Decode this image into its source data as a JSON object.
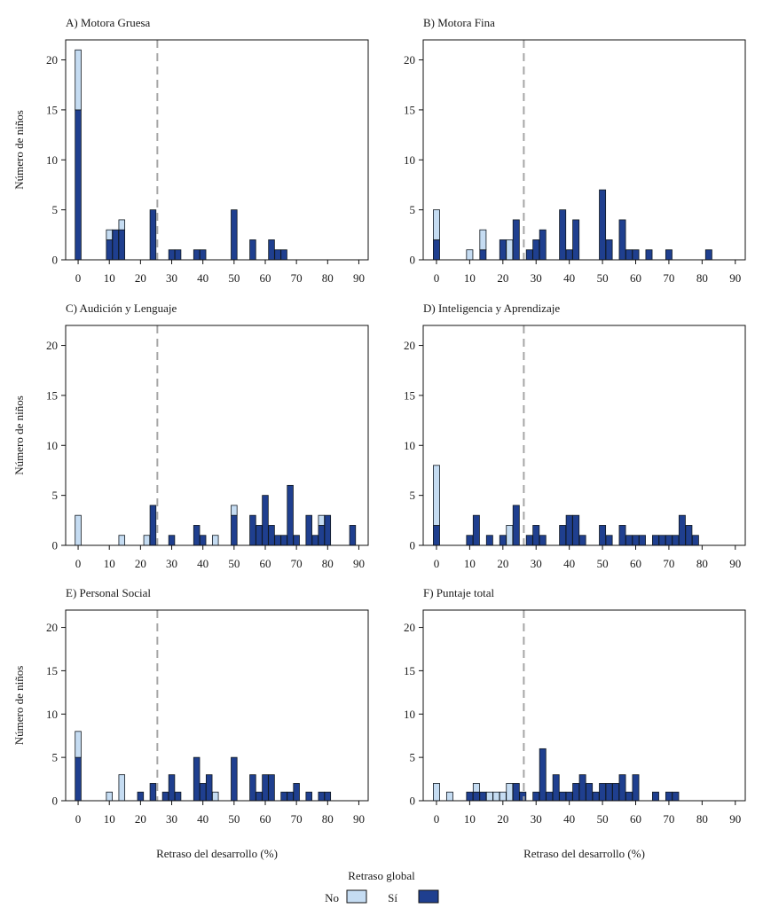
{
  "chart_data": [
    {
      "type": "bar",
      "stacked": true,
      "title": "A) Motora Gruesa",
      "ylabel": "Número de niños",
      "xlabel": "",
      "xlim": [
        -4,
        93
      ],
      "ylim": [
        0,
        22
      ],
      "xticks": [
        0,
        10,
        20,
        30,
        40,
        50,
        60,
        70,
        80,
        90
      ],
      "yticks": [
        0,
        5,
        10,
        15,
        20
      ],
      "threshold": 25.4,
      "x": [
        0,
        10,
        12,
        14,
        24,
        30,
        32,
        38,
        40,
        50,
        56,
        62,
        64,
        66
      ],
      "series": [
        {
          "name": "Sí",
          "values": [
            15,
            2,
            3,
            3,
            5,
            1,
            1,
            1,
            1,
            5,
            2,
            2,
            1,
            1
          ]
        },
        {
          "name": "No",
          "values": [
            6,
            1,
            0,
            1,
            0,
            0,
            0,
            0,
            0,
            0,
            0,
            0,
            0,
            0
          ]
        }
      ]
    },
    {
      "type": "bar",
      "stacked": true,
      "title": "B) Motora Fina",
      "ylabel": "",
      "xlabel": "",
      "xlim": [
        -4,
        93
      ],
      "ylim": [
        0,
        22
      ],
      "xticks": [
        0,
        10,
        20,
        30,
        40,
        50,
        60,
        70,
        80,
        90
      ],
      "yticks": [
        0,
        5,
        10,
        15,
        20
      ],
      "threshold": 26.3,
      "x": [
        0,
        10,
        14,
        20,
        22,
        24,
        28,
        30,
        32,
        38,
        40,
        42,
        50,
        52,
        56,
        58,
        60,
        64,
        70,
        82
      ],
      "series": [
        {
          "name": "Sí",
          "values": [
            2,
            0,
            1,
            2,
            0,
            4,
            1,
            2,
            3,
            5,
            1,
            4,
            7,
            2,
            4,
            1,
            1,
            1,
            1,
            1
          ]
        },
        {
          "name": "No",
          "values": [
            3,
            1,
            2,
            0,
            2,
            0,
            0,
            0,
            0,
            0,
            0,
            0,
            0,
            0,
            0,
            0,
            0,
            0,
            0,
            0
          ]
        }
      ]
    },
    {
      "type": "bar",
      "stacked": true,
      "title": "C) Audición y Lenguaje",
      "ylabel": "Número de niños",
      "xlabel": "",
      "xlim": [
        -4,
        93
      ],
      "ylim": [
        0,
        22
      ],
      "xticks": [
        0,
        10,
        20,
        30,
        40,
        50,
        60,
        70,
        80,
        90
      ],
      "yticks": [
        0,
        5,
        10,
        15,
        20
      ],
      "threshold": 25.4,
      "x": [
        0,
        14,
        22,
        24,
        30,
        38,
        40,
        44,
        50,
        56,
        58,
        60,
        62,
        64,
        66,
        68,
        70,
        74,
        76,
        78,
        80,
        88
      ],
      "series": [
        {
          "name": "Sí",
          "values": [
            0,
            0,
            0,
            4,
            1,
            2,
            1,
            0,
            3,
            3,
            2,
            5,
            2,
            1,
            1,
            6,
            1,
            3,
            1,
            2,
            3,
            2
          ]
        },
        {
          "name": "No",
          "values": [
            3,
            1,
            1,
            0,
            0,
            0,
            0,
            1,
            1,
            0,
            0,
            0,
            0,
            0,
            0,
            0,
            0,
            0,
            0,
            1,
            0,
            0
          ]
        }
      ]
    },
    {
      "type": "bar",
      "stacked": true,
      "title": "D) Inteligencia y Aprendizaje",
      "ylabel": "",
      "xlabel": "",
      "xlim": [
        -4,
        93
      ],
      "ylim": [
        0,
        22
      ],
      "xticks": [
        0,
        10,
        20,
        30,
        40,
        50,
        60,
        70,
        80,
        90
      ],
      "yticks": [
        0,
        5,
        10,
        15,
        20
      ],
      "threshold": 26.3,
      "x": [
        0,
        10,
        12,
        16,
        20,
        22,
        24,
        28,
        30,
        32,
        38,
        40,
        42,
        44,
        50,
        52,
        56,
        58,
        60,
        62,
        66,
        68,
        70,
        72,
        74,
        76,
        78
      ],
      "series": [
        {
          "name": "Sí",
          "values": [
            2,
            1,
            3,
            1,
            1,
            0,
            4,
            1,
            2,
            1,
            2,
            3,
            3,
            1,
            2,
            1,
            2,
            1,
            1,
            1,
            1,
            1,
            1,
            1,
            3,
            2,
            1
          ]
        },
        {
          "name": "No",
          "values": [
            6,
            0,
            0,
            0,
            0,
            2,
            0,
            0,
            0,
            0,
            0,
            0,
            0,
            0,
            0,
            0,
            0,
            0,
            0,
            0,
            0,
            0,
            0,
            0,
            0,
            0,
            0
          ]
        }
      ]
    },
    {
      "type": "bar",
      "stacked": true,
      "title": "E) Personal Social",
      "ylabel": "Número de niños",
      "xlabel": "Retraso del desarrollo (%)",
      "xlim": [
        -4,
        93
      ],
      "ylim": [
        0,
        22
      ],
      "xticks": [
        0,
        10,
        20,
        30,
        40,
        50,
        60,
        70,
        80,
        90
      ],
      "yticks": [
        0,
        5,
        10,
        15,
        20
      ],
      "threshold": 25.4,
      "x": [
        0,
        10,
        14,
        20,
        24,
        28,
        30,
        32,
        38,
        40,
        42,
        44,
        50,
        56,
        58,
        60,
        62,
        66,
        68,
        70,
        74,
        78,
        80
      ],
      "series": [
        {
          "name": "Sí",
          "values": [
            5,
            0,
            0,
            1,
            2,
            1,
            3,
            1,
            5,
            2,
            3,
            0,
            5,
            3,
            1,
            3,
            3,
            1,
            1,
            2,
            1,
            1,
            1
          ]
        },
        {
          "name": "No",
          "values": [
            3,
            1,
            3,
            0,
            0,
            0,
            0,
            0,
            0,
            0,
            0,
            1,
            0,
            0,
            0,
            0,
            0,
            0,
            0,
            0,
            0,
            0,
            0
          ]
        }
      ]
    },
    {
      "type": "bar",
      "stacked": true,
      "title": "F) Puntaje total",
      "ylabel": "",
      "xlabel": "Retraso del desarrollo (%)",
      "xlim": [
        -4,
        93
      ],
      "ylim": [
        0,
        22
      ],
      "xticks": [
        0,
        10,
        20,
        30,
        40,
        50,
        60,
        70,
        80,
        90
      ],
      "yticks": [
        0,
        5,
        10,
        15,
        20
      ],
      "threshold": 26.3,
      "x": [
        0,
        4,
        10,
        12,
        14,
        16,
        18,
        20,
        22,
        24,
        26,
        30,
        32,
        34,
        36,
        38,
        40,
        42,
        44,
        46,
        48,
        50,
        52,
        54,
        56,
        58,
        60,
        66,
        70,
        72
      ],
      "series": [
        {
          "name": "Sí",
          "values": [
            0,
            0,
            1,
            1,
            1,
            0,
            0,
            0,
            0,
            2,
            1,
            1,
            6,
            1,
            3,
            1,
            1,
            2,
            3,
            2,
            1,
            2,
            2,
            2,
            3,
            1,
            3,
            1,
            1,
            1
          ]
        },
        {
          "name": "No",
          "values": [
            2,
            1,
            0,
            1,
            0,
            1,
            1,
            1,
            2,
            0,
            0,
            0,
            0,
            0,
            0,
            0,
            0,
            0,
            0,
            0,
            0,
            0,
            0,
            0,
            0,
            0,
            0,
            0,
            0,
            0
          ]
        }
      ]
    }
  ],
  "legend": {
    "title": "Retraso global",
    "items": [
      {
        "label": "No",
        "color": "#c5dcf2"
      },
      {
        "label": "Sí",
        "color": "#1f3f8f"
      }
    ]
  },
  "colors": {
    "no": "#c5dcf2",
    "si": "#1f3f8f",
    "threshold": "#a6a6a6"
  }
}
